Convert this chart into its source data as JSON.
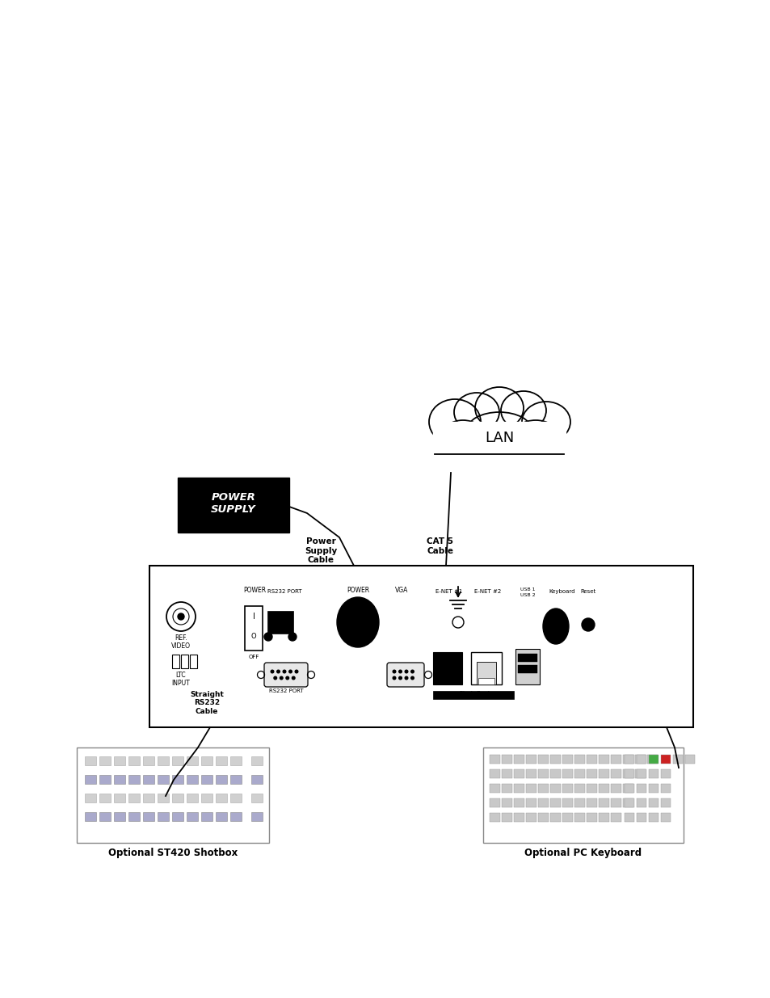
{
  "bg_color": "#ffffff",
  "panel_label_power_supply": "POWER\nSUPPLY",
  "panel_label_lan": "LAN",
  "cable_label_power": "Power\nSupply\nCable",
  "cable_label_cat5": "CAT 5\nCable",
  "cable_label_straight": "Straight\nRS232\nCable",
  "optional_shotbox_label": "Optional ST420 Shotbox",
  "optional_keyboard_label": "Optional PC Keyboard",
  "text_color": "#000000",
  "power_supply_bg": "#000000",
  "power_supply_text_color": "#ffffff",
  "fig_w": 9.54,
  "fig_h": 12.35,
  "dpi": 100
}
